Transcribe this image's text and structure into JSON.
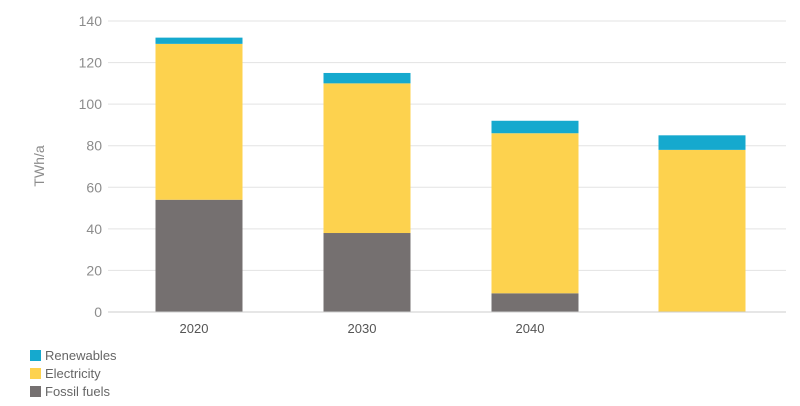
{
  "chart_data": {
    "type": "bar",
    "stacked": true,
    "categories": [
      "2020",
      "2030",
      "2040",
      ""
    ],
    "series": [
      {
        "name": "Fossil fuels",
        "color": "#757070",
        "values": [
          54,
          38,
          9,
          0
        ]
      },
      {
        "name": "Electricity",
        "color": "#FDD24E",
        "values": [
          75,
          72,
          77,
          78
        ]
      },
      {
        "name": "Renewables",
        "color": "#15A9CE",
        "values": [
          3,
          5,
          6,
          7
        ]
      }
    ],
    "ylabel": "TWh/a",
    "ylim": [
      0,
      140
    ],
    "yticks": [
      0,
      20,
      40,
      60,
      80,
      100,
      120,
      140
    ],
    "grid": true,
    "legend_position": "bottom-left"
  },
  "legend": {
    "items": [
      {
        "label": "Renewables",
        "color": "#15A9CE"
      },
      {
        "label": "Electricity",
        "color": "#FDD24E"
      },
      {
        "label": "Fossil fuels",
        "color": "#757070"
      }
    ]
  }
}
